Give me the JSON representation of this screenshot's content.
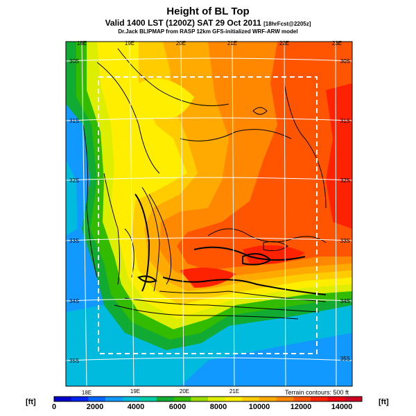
{
  "header": {
    "title": "Height of BL Top",
    "valid": "Valid 1400 LST (1200Z) SAT 29 Oct 2011",
    "forecast": "[18hrFcst@2205z]",
    "source": "Dr.Jack BLIPMAP from RASP 12km GFS-initialized WRF-ARW model"
  },
  "map": {
    "terrain_note": "Terrain contours: 500 ft",
    "lon_labels_top": [
      "18E",
      "19E",
      "20E",
      "21E",
      "22E",
      "23E"
    ],
    "lon_labels_bottom": [
      "18E",
      "19E",
      "20E",
      "21E"
    ],
    "lat_labels_left": [
      "30S",
      "31S",
      "32S",
      "33S",
      "34S",
      "35S"
    ],
    "lat_labels_right": [
      "30S",
      "31S",
      "32S",
      "33S",
      "34S",
      "35S"
    ]
  },
  "colorbar": {
    "unit_label": "[ft]",
    "tick_labels": [
      "0",
      "2000",
      "4000",
      "6000",
      "8000",
      "10000",
      "12000",
      "14000"
    ],
    "colors": [
      "#0000cc",
      "#0022ee",
      "#0066ff",
      "#1199ff",
      "#00bbdd",
      "#00ccaa",
      "#11aa33",
      "#33bb00",
      "#99dd00",
      "#ddee00",
      "#ffee00",
      "#ffcc00",
      "#ffaa00",
      "#ff8800",
      "#ff5500",
      "#ff2200",
      "#ee0011",
      "#cc0022"
    ]
  }
}
